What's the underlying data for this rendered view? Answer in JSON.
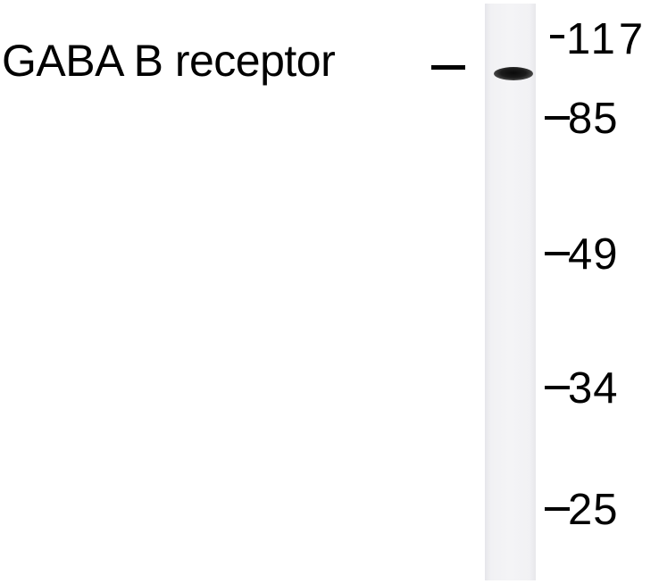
{
  "blot": {
    "protein_label": "GABA B receptor",
    "markers": [
      {
        "value": "117"
      },
      {
        "value": "85"
      },
      {
        "value": "49"
      },
      {
        "value": "34"
      },
      {
        "value": "25"
      }
    ],
    "colors": {
      "background": "#ffffff",
      "lane": "#f2f2f5",
      "band": "#111111",
      "text": "#000000"
    }
  }
}
